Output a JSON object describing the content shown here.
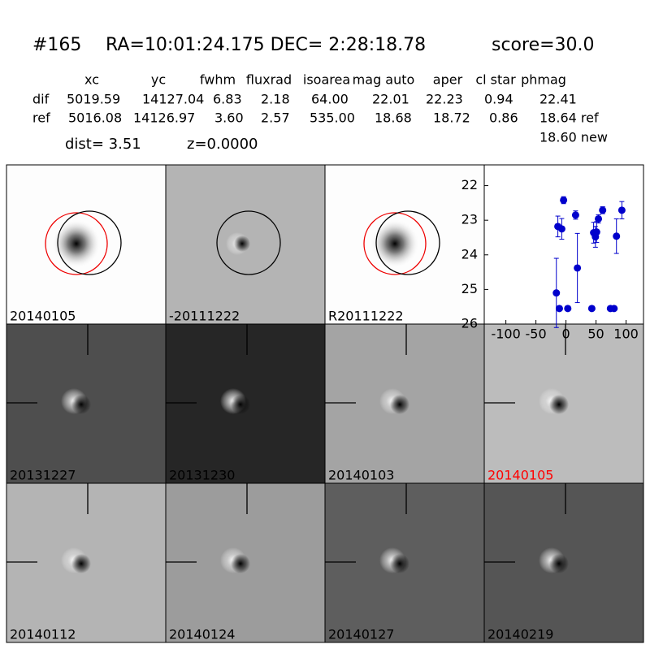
{
  "header": {
    "id": "#165",
    "coords": "RA=10:01:24.175 DEC= 2:28:18.78",
    "score": "score=30.0"
  },
  "table": {
    "columns": [
      "xc",
      "yc",
      "fwhm",
      "fluxrad",
      "isoarea",
      "mag auto",
      "aper",
      "cl star",
      "phmag"
    ],
    "rows": [
      {
        "label": "dif",
        "cells": [
          "5019.59",
          "14127.04",
          "6.83",
          "2.18",
          "64.00",
          "22.01",
          "22.23",
          "0.94",
          "22.41"
        ]
      },
      {
        "label": "ref",
        "cells": [
          "5016.08",
          "14126.97",
          "3.60",
          "2.57",
          "535.00",
          "18.68",
          "18.72",
          "0.86",
          "18.64 ref"
        ]
      }
    ],
    "extra": "18.60 new"
  },
  "summary": {
    "dist": "dist=  3.51",
    "z": "z=0.0000"
  },
  "panels": [
    {
      "label": "20140105"
    },
    {
      "label": "-20111222"
    },
    {
      "label": "R20111222"
    },
    {
      "label": "20131227"
    },
    {
      "label": "20131230"
    },
    {
      "label": "20140103"
    },
    {
      "label": "20140105",
      "color": "#ff0000"
    },
    {
      "label": "20140112"
    },
    {
      "label": "20140124"
    },
    {
      "label": "20140127"
    },
    {
      "label": "20140219"
    }
  ],
  "chart_data": {
    "type": "scatter",
    "xlim": [
      -136,
      129
    ],
    "ylim": [
      21.4,
      26
    ],
    "xticks": [
      -100,
      -50,
      0,
      50,
      100
    ],
    "yticks": [
      22,
      23,
      24,
      25,
      26
    ],
    "y_inverted": true,
    "series": [
      {
        "color": "#0000cc",
        "x": [
          -16,
          -13.5,
          -7,
          -4,
          -11,
          3,
          16,
          19,
          43,
          46,
          49,
          51,
          54,
          61,
          74,
          80,
          84,
          93
        ],
        "values": [
          25.1,
          23.18,
          23.25,
          22.42,
          25.55,
          25.55,
          22.85,
          24.38,
          25.55,
          23.36,
          23.48,
          23.34,
          22.96,
          22.71,
          25.55,
          25.55,
          23.46,
          22.71
        ],
        "errors": [
          1.0,
          0.3,
          0.3,
          0.1,
          0,
          0,
          0.12,
          1.0,
          0,
          0.3,
          0.3,
          0.3,
          0.12,
          0.1,
          0,
          0,
          0.5,
          0.25
        ]
      }
    ]
  }
}
